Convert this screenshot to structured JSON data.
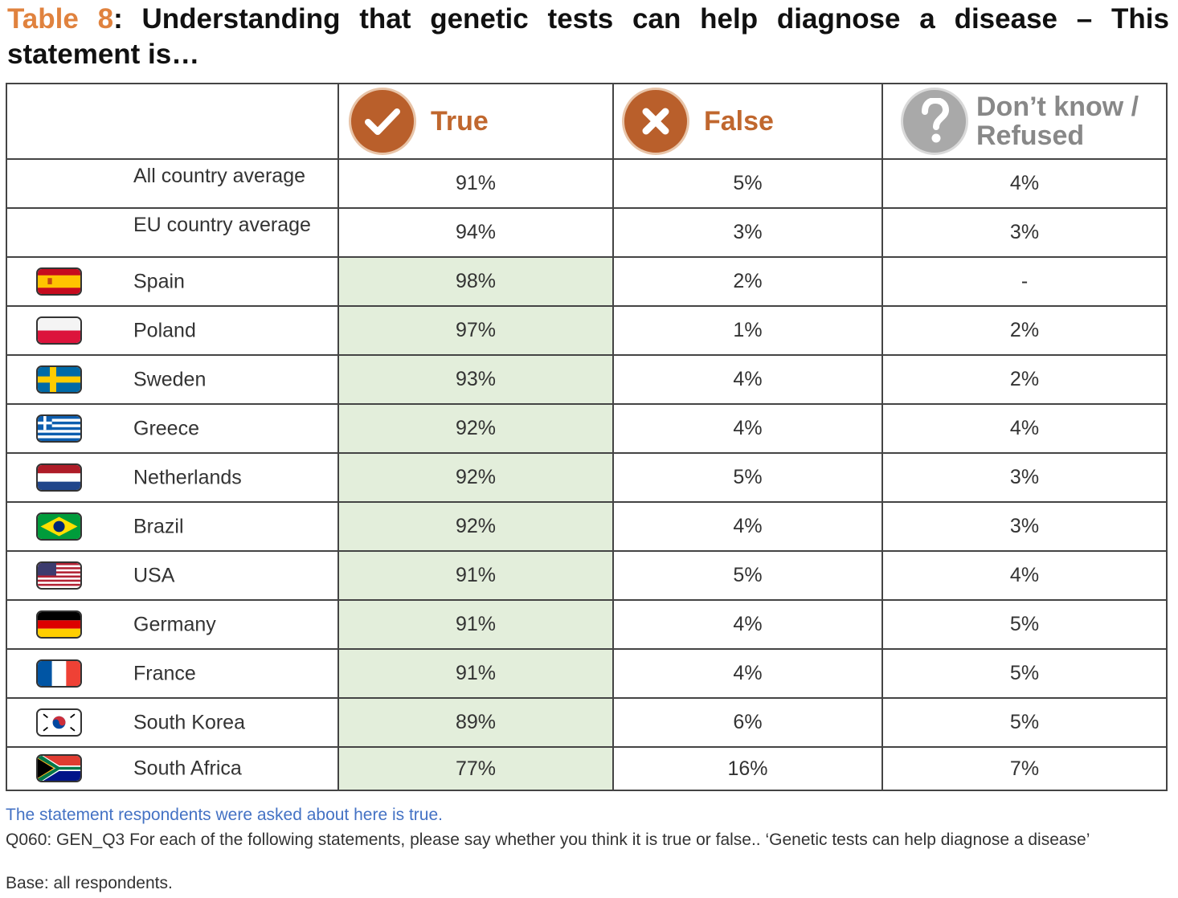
{
  "title": {
    "label": "Table 8",
    "text": ": Understanding that genetic tests can help diagnose a disease – This statement is…"
  },
  "columns": {
    "true": "True",
    "false": "False",
    "dontknow_line1": "Don’t know /",
    "dontknow_line2": "Refused"
  },
  "rows": [
    {
      "label": "All country average",
      "flag": null,
      "true": "91%",
      "false": "5%",
      "dk": "4%"
    },
    {
      "label": "EU country average",
      "flag": null,
      "true": "94%",
      "false": "3%",
      "dk": "3%"
    },
    {
      "label": "Spain",
      "flag": "spain-flag-icon",
      "true": "98%",
      "false": "2%",
      "dk": "-"
    },
    {
      "label": "Poland",
      "flag": "poland-flag-icon",
      "true": "97%",
      "false": "1%",
      "dk": "2%"
    },
    {
      "label": "Sweden",
      "flag": "sweden-flag-icon",
      "true": "93%",
      "false": "4%",
      "dk": "2%"
    },
    {
      "label": "Greece",
      "flag": "greece-flag-icon",
      "true": "92%",
      "false": "4%",
      "dk": "4%"
    },
    {
      "label": "Netherlands",
      "flag": "netherlands-flag-icon",
      "true": "92%",
      "false": "5%",
      "dk": "3%"
    },
    {
      "label": "Brazil",
      "flag": "brazil-flag-icon",
      "true": "92%",
      "false": "4%",
      "dk": "3%"
    },
    {
      "label": "USA",
      "flag": "usa-flag-icon",
      "true": "91%",
      "false": "5%",
      "dk": "4%"
    },
    {
      "label": "Germany",
      "flag": "germany-flag-icon",
      "true": "91%",
      "false": "4%",
      "dk": "5%"
    },
    {
      "label": "France",
      "flag": "france-flag-icon",
      "true": "91%",
      "false": "4%",
      "dk": "5%"
    },
    {
      "label": "South Korea",
      "flag": "south-korea-flag-icon",
      "true": "89%",
      "false": "6%",
      "dk": "5%"
    },
    {
      "label": "South Africa",
      "flag": "south-africa-flag-icon",
      "true": "77%",
      "false": "16%",
      "dk": "7%"
    }
  ],
  "notes": {
    "truth": "The statement respondents were asked about here is true.",
    "question": "Q060: GEN_Q3 For each of the following statements, please say whether you think it is true or false.. ‘Genetic tests can help diagnose a disease’",
    "base": "Base: all respondents."
  },
  "colors": {
    "title_label": "#E0823E",
    "true_icon": "#B95F2B",
    "header_orange": "#C0672E",
    "header_grey": "#888888",
    "highlight": "#E3EEDB",
    "note_blue": "#4472C4"
  }
}
